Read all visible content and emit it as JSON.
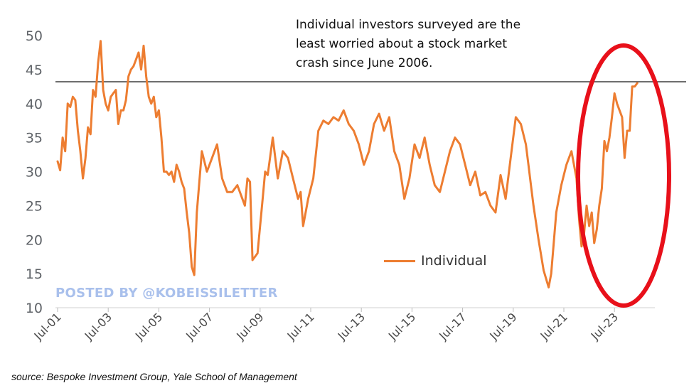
{
  "chart_data": {
    "type": "line",
    "title": "",
    "xlabel": "",
    "ylabel": "",
    "ylim": [
      10,
      50
    ],
    "y_ticks": [
      "10",
      "15",
      "20",
      "25",
      "30",
      "35",
      "40",
      "45",
      "50"
    ],
    "x_ticks": [
      "Jul-01",
      "Jul-03",
      "Jul-05",
      "Jul-07",
      "Jul-09",
      "Jul-11",
      "Jul-13",
      "Jul-15",
      "Jul-17",
      "Jul-19",
      "Jul-21",
      "Jul-23"
    ],
    "xlim": [
      2001.5,
      2025.0
    ],
    "grid": false,
    "legend": {
      "position": "bottom-center",
      "entries": [
        "Individual"
      ]
    },
    "reference_line": {
      "value": 43.2,
      "label": ""
    },
    "annotation": [
      "Individual investors surveyed are the",
      "least worried about a stock market",
      "crash since June 2006."
    ],
    "highlight": {
      "shape": "ellipse",
      "color": "#e8101a",
      "x_from": 2022.2,
      "x_to": 2024.6
    },
    "series": [
      {
        "name": "Individual",
        "color": "#ed7d31",
        "x": [
          2001.5,
          2001.6,
          2001.7,
          2001.8,
          2001.9,
          2002.0,
          2002.1,
          2002.2,
          2002.3,
          2002.4,
          2002.5,
          2002.6,
          2002.7,
          2002.8,
          2002.9,
          2003.0,
          2003.1,
          2003.2,
          2003.3,
          2003.4,
          2003.5,
          2003.6,
          2003.7,
          2003.8,
          2003.9,
          2004.0,
          2004.1,
          2004.2,
          2004.3,
          2004.4,
          2004.5,
          2004.6,
          2004.7,
          2004.8,
          2004.9,
          2005.0,
          2005.1,
          2005.2,
          2005.3,
          2005.4,
          2005.5,
          2005.6,
          2005.7,
          2005.8,
          2005.9,
          2006.0,
          2006.1,
          2006.2,
          2006.3,
          2006.4,
          2006.5,
          2006.6,
          2006.7,
          2006.8,
          2006.9,
          2007.0,
          2007.2,
          2007.4,
          2007.6,
          2007.8,
          2008.0,
          2008.2,
          2008.4,
          2008.6,
          2008.8,
          2008.9,
          2009.0,
          2009.1,
          2009.2,
          2009.4,
          2009.6,
          2009.7,
          2009.8,
          2010.0,
          2010.2,
          2010.4,
          2010.6,
          2010.8,
          2011.0,
          2011.1,
          2011.2,
          2011.4,
          2011.6,
          2011.8,
          2012.0,
          2012.2,
          2012.4,
          2012.6,
          2012.8,
          2013.0,
          2013.2,
          2013.4,
          2013.6,
          2013.8,
          2014.0,
          2014.2,
          2014.4,
          2014.6,
          2014.8,
          2015.0,
          2015.2,
          2015.4,
          2015.6,
          2015.8,
          2016.0,
          2016.2,
          2016.4,
          2016.6,
          2016.8,
          2017.0,
          2017.2,
          2017.4,
          2017.6,
          2017.8,
          2018.0,
          2018.2,
          2018.4,
          2018.6,
          2018.8,
          2019.0,
          2019.2,
          2019.4,
          2019.6,
          2019.8,
          2020.0,
          2020.1,
          2020.2,
          2020.3,
          2020.5,
          2020.7,
          2020.9,
          2021.0,
          2021.2,
          2021.4,
          2021.6,
          2021.8,
          2022.0,
          2022.1,
          2022.2,
          2022.3,
          2022.4,
          2022.5,
          2022.6,
          2022.7,
          2022.8,
          2022.9,
          2023.0,
          2023.1,
          2023.2,
          2023.3,
          2023.4,
          2023.5,
          2023.6,
          2023.7,
          2023.8,
          2023.9,
          2024.0,
          2024.1,
          2024.2,
          2024.3,
          2024.4
        ],
        "y": [
          31.5,
          30.2,
          35,
          33,
          40,
          39.5,
          41,
          40.5,
          36,
          33,
          29,
          32,
          36.5,
          35.5,
          42,
          41,
          46,
          49.2,
          42,
          40,
          39,
          41,
          41.5,
          42,
          37,
          39,
          39,
          40.5,
          44,
          45,
          45.5,
          46.5,
          47.5,
          45,
          48.5,
          44,
          41,
          40,
          41,
          38,
          39,
          35,
          30,
          30,
          29.5,
          30,
          28.5,
          31,
          30,
          28.5,
          27.5,
          24,
          21,
          16,
          14.8,
          24,
          33,
          30,
          32,
          34,
          29,
          27,
          27,
          28,
          26,
          25,
          29,
          28.5,
          17,
          18,
          26,
          30,
          29.5,
          35,
          29,
          33,
          32,
          29,
          26,
          27,
          22,
          26,
          29,
          36,
          37.5,
          37,
          38,
          37.5,
          39,
          37,
          36,
          34,
          31,
          33,
          37,
          38.5,
          36,
          38,
          33,
          31,
          26,
          29,
          34,
          32,
          35,
          31,
          28,
          27,
          30,
          33,
          35,
          34,
          31,
          28,
          30,
          26.5,
          27,
          25,
          24,
          29.5,
          26,
          32,
          38,
          37,
          34,
          31,
          28,
          25,
          20,
          15.5,
          13,
          15,
          24,
          28,
          31,
          33,
          29,
          23,
          19,
          21,
          25,
          22,
          24,
          19.5,
          21.5,
          25,
          27.5,
          34.5,
          33,
          35,
          38,
          41.5,
          40,
          39,
          38,
          32,
          36,
          36,
          42.5,
          42.5,
          43
        ]
      }
    ]
  },
  "source_text": "source: Bespoke Investment Group, Yale School of Management",
  "watermark_text": "POSTED BY @KOBEISSILETTER"
}
